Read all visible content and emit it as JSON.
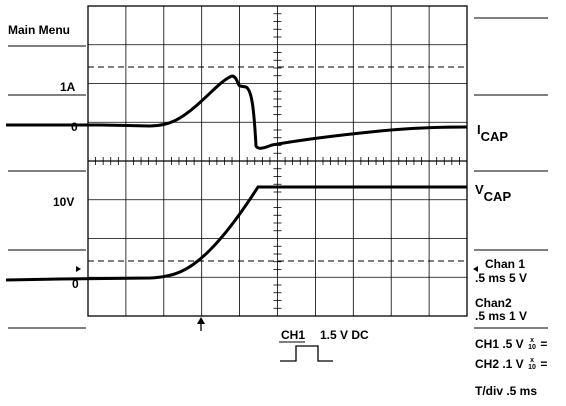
{
  "left_panel": {
    "main_menu": "Main Menu",
    "one_amp": "1A",
    "zero_top": "0",
    "ten_volt": "10V",
    "zero_bottom": "0"
  },
  "right_panel": {
    "icap_main": "I",
    "icap_sub": "CAP",
    "vcap_main": "V",
    "vcap_sub": "CAP",
    "chan1_title": "Chan 1",
    "chan1_setting": ".5 ms  5 V",
    "chan2_title": "Chan2",
    "chan2_setting": ".5 ms  1 V",
    "ch1_probe": "CH1 .5 V",
    "ch2_probe": "CH2 .1 V",
    "probe_x": "x",
    "probe_10": "10",
    "probe_eq": "=",
    "tdiv": "T/div .5 ms"
  },
  "trigger": {
    "label": "CH1",
    "value": "1.5 V DC"
  },
  "icons": {
    "trigger_position": "up-arrow-icon",
    "channel_ref_left": "right-triangle-icon",
    "channel_ref_right": "left-triangle-icon",
    "trigger_pulse": "rising-pulse-icon"
  }
}
